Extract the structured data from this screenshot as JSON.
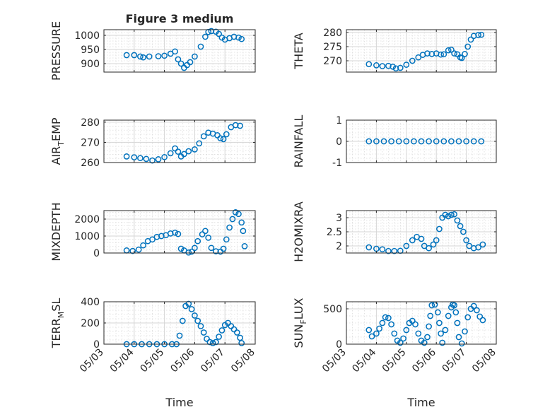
{
  "figure_title": "Figure 3 medium",
  "colors": {
    "marker": "#0072bd",
    "axis": "#262626",
    "grid": "#d6d6d6"
  },
  "chart_data": [
    {
      "id": "pressure",
      "type": "scatter",
      "title": "Figure 3 medium",
      "ylabel": "PRESSURE",
      "xlabel": "",
      "xlim": [
        0,
        5
      ],
      "ylim": [
        870,
        1020
      ],
      "yticks": [
        900,
        950,
        1000
      ],
      "ytick_labels": [
        "900",
        "950",
        "1000"
      ],
      "xticks": [
        0,
        1,
        2,
        3,
        4,
        5
      ],
      "xtick_labels": [],
      "grid": true,
      "points": [
        [
          0.75,
          930
        ],
        [
          1.0,
          930
        ],
        [
          1.2,
          925
        ],
        [
          1.3,
          922
        ],
        [
          1.5,
          925
        ],
        [
          1.8,
          926
        ],
        [
          2.0,
          928
        ],
        [
          2.2,
          935
        ],
        [
          2.35,
          943
        ],
        [
          2.45,
          915
        ],
        [
          2.55,
          900
        ],
        [
          2.65,
          885
        ],
        [
          2.75,
          895
        ],
        [
          2.85,
          905
        ],
        [
          3.0,
          925
        ],
        [
          3.2,
          960
        ],
        [
          3.35,
          995
        ],
        [
          3.45,
          1012
        ],
        [
          3.55,
          1015
        ],
        [
          3.7,
          1013
        ],
        [
          3.8,
          1005
        ],
        [
          3.9,
          992
        ],
        [
          4.0,
          985
        ],
        [
          4.15,
          990
        ],
        [
          4.3,
          995
        ],
        [
          4.45,
          992
        ],
        [
          4.55,
          987
        ]
      ]
    },
    {
      "id": "theta",
      "type": "scatter",
      "title": "",
      "ylabel": "THETA",
      "xlabel": "",
      "xlim": [
        0,
        5
      ],
      "ylim": [
        266,
        281
      ],
      "yticks": [
        270,
        275,
        280
      ],
      "ytick_labels": [
        "270",
        "275",
        "280"
      ],
      "xticks": [
        0,
        1,
        2,
        3,
        4,
        5
      ],
      "xtick_labels": [],
      "grid": true,
      "points": [
        [
          0.75,
          268.8
        ],
        [
          1.0,
          268.4
        ],
        [
          1.2,
          268.1
        ],
        [
          1.4,
          268.2
        ],
        [
          1.55,
          267.9
        ],
        [
          1.65,
          267.3
        ],
        [
          1.8,
          267.5
        ],
        [
          2.0,
          268.6
        ],
        [
          2.2,
          270.0
        ],
        [
          2.4,
          271.2
        ],
        [
          2.55,
          272.1
        ],
        [
          2.7,
          272.6
        ],
        [
          2.85,
          272.4
        ],
        [
          3.0,
          272.6
        ],
        [
          3.15,
          272.2
        ],
        [
          3.25,
          272.3
        ],
        [
          3.4,
          273.7
        ],
        [
          3.5,
          273.9
        ],
        [
          3.6,
          272.6
        ],
        [
          3.7,
          272.3
        ],
        [
          3.8,
          271.2
        ],
        [
          3.85,
          271.0
        ],
        [
          3.95,
          272.4
        ],
        [
          4.05,
          275.0
        ],
        [
          4.15,
          277.5
        ],
        [
          4.25,
          278.8
        ],
        [
          4.4,
          279.1
        ],
        [
          4.5,
          279.2
        ]
      ]
    },
    {
      "id": "air_temp",
      "type": "scatter",
      "title": "",
      "ylabel": "AIR_TEMP",
      "xlabel": "",
      "ylabel_parts": [
        "AIR",
        "T",
        "EMP"
      ],
      "xlim": [
        0,
        5
      ],
      "ylim": [
        260,
        281
      ],
      "yticks": [
        260,
        270,
        280
      ],
      "ytick_labels": [
        "260",
        "270",
        "280"
      ],
      "xticks": [
        0,
        1,
        2,
        3,
        4,
        5
      ],
      "xtick_labels": [],
      "grid": true,
      "points": [
        [
          0.75,
          263.0
        ],
        [
          1.0,
          262.6
        ],
        [
          1.2,
          262.2
        ],
        [
          1.4,
          261.8
        ],
        [
          1.6,
          261.0
        ],
        [
          1.8,
          261.6
        ],
        [
          2.0,
          262.7
        ],
        [
          2.2,
          264.6
        ],
        [
          2.35,
          267.0
        ],
        [
          2.45,
          265.4
        ],
        [
          2.55,
          263.0
        ],
        [
          2.65,
          264.2
        ],
        [
          2.8,
          265.6
        ],
        [
          3.0,
          266.5
        ],
        [
          3.15,
          269.5
        ],
        [
          3.3,
          273.0
        ],
        [
          3.45,
          274.8
        ],
        [
          3.6,
          274.3
        ],
        [
          3.75,
          273.5
        ],
        [
          3.85,
          272.0
        ],
        [
          3.95,
          271.6
        ],
        [
          4.05,
          274.0
        ],
        [
          4.2,
          277.5
        ],
        [
          4.35,
          278.5
        ],
        [
          4.5,
          278.2
        ]
      ]
    },
    {
      "id": "rainfall",
      "type": "scatter",
      "title": "",
      "ylabel": "RAINFALL",
      "xlabel": "",
      "xlim": [
        0,
        5
      ],
      "ylim": [
        -1,
        1
      ],
      "yticks": [
        -1,
        0,
        1
      ],
      "ytick_labels": [
        "-1",
        "0",
        "1"
      ],
      "xticks": [
        0,
        1,
        2,
        3,
        4,
        5
      ],
      "xtick_labels": [],
      "grid": true,
      "points": [
        [
          0.75,
          0
        ],
        [
          1.0,
          0
        ],
        [
          1.25,
          0
        ],
        [
          1.5,
          0
        ],
        [
          1.75,
          0
        ],
        [
          2.0,
          0
        ],
        [
          2.25,
          0
        ],
        [
          2.5,
          0
        ],
        [
          2.75,
          0
        ],
        [
          3.0,
          0
        ],
        [
          3.25,
          0
        ],
        [
          3.5,
          0
        ],
        [
          3.75,
          0
        ],
        [
          4.0,
          0
        ],
        [
          4.25,
          0
        ],
        [
          4.5,
          0
        ]
      ]
    },
    {
      "id": "mixdepth",
      "type": "scatter",
      "title": "",
      "ylabel": "MIXDEPTH",
      "xlabel": "",
      "xlim": [
        0,
        5
      ],
      "ylim": [
        0,
        2500
      ],
      "yticks": [
        0,
        1000,
        2000
      ],
      "ytick_labels": [
        "0",
        "1000",
        "2000"
      ],
      "xticks": [
        0,
        1,
        2,
        3,
        4,
        5
      ],
      "xtick_labels": [],
      "grid": true,
      "points": [
        [
          0.75,
          150
        ],
        [
          0.95,
          120
        ],
        [
          1.15,
          200
        ],
        [
          1.3,
          450
        ],
        [
          1.45,
          700
        ],
        [
          1.6,
          800
        ],
        [
          1.75,
          950
        ],
        [
          1.9,
          1000
        ],
        [
          2.05,
          1050
        ],
        [
          2.2,
          1150
        ],
        [
          2.35,
          1200
        ],
        [
          2.45,
          1120
        ],
        [
          2.55,
          250
        ],
        [
          2.65,
          150
        ],
        [
          2.8,
          30
        ],
        [
          2.9,
          80
        ],
        [
          3.0,
          300
        ],
        [
          3.1,
          700
        ],
        [
          3.25,
          1100
        ],
        [
          3.35,
          1300
        ],
        [
          3.45,
          900
        ],
        [
          3.55,
          300
        ],
        [
          3.7,
          100
        ],
        [
          3.85,
          80
        ],
        [
          3.95,
          250
        ],
        [
          4.05,
          800
        ],
        [
          4.15,
          1500
        ],
        [
          4.25,
          2000
        ],
        [
          4.35,
          2400
        ],
        [
          4.45,
          2300
        ],
        [
          4.55,
          1800
        ],
        [
          4.6,
          1300
        ],
        [
          4.65,
          400
        ]
      ]
    },
    {
      "id": "h2omixra",
      "type": "scatter",
      "title": "",
      "ylabel": "H2OMIXRA",
      "xlabel": "",
      "xlim": [
        0,
        5
      ],
      "ylim": [
        1.75,
        3.25
      ],
      "yticks": [
        2,
        2.5,
        3
      ],
      "ytick_labels": [
        "2",
        "2.5",
        "3"
      ],
      "xticks": [
        0,
        1,
        2,
        3,
        4,
        5
      ],
      "xtick_labels": [],
      "grid": true,
      "points": [
        [
          0.75,
          1.95
        ],
        [
          1.0,
          1.9
        ],
        [
          1.2,
          1.88
        ],
        [
          1.4,
          1.82
        ],
        [
          1.6,
          1.82
        ],
        [
          1.8,
          1.83
        ],
        [
          2.0,
          2.0
        ],
        [
          2.2,
          2.2
        ],
        [
          2.35,
          2.32
        ],
        [
          2.5,
          2.25
        ],
        [
          2.6,
          2.0
        ],
        [
          2.75,
          1.92
        ],
        [
          2.9,
          2.05
        ],
        [
          3.0,
          2.2
        ],
        [
          3.1,
          2.6
        ],
        [
          3.2,
          3.0
        ],
        [
          3.3,
          3.1
        ],
        [
          3.4,
          3.05
        ],
        [
          3.5,
          3.1
        ],
        [
          3.6,
          3.12
        ],
        [
          3.7,
          2.9
        ],
        [
          3.8,
          2.7
        ],
        [
          3.9,
          2.5
        ],
        [
          4.0,
          2.2
        ],
        [
          4.1,
          2.0
        ],
        [
          4.25,
          1.92
        ],
        [
          4.4,
          1.95
        ],
        [
          4.55,
          2.05
        ]
      ]
    },
    {
      "id": "terr_msl",
      "type": "scatter",
      "title": "",
      "ylabel": "TERR_MSL",
      "xlabel": "Time",
      "ylabel_parts": [
        "TERR",
        "M",
        "SL"
      ],
      "xlim": [
        0,
        5
      ],
      "ylim": [
        0,
        400
      ],
      "yticks": [
        0,
        200,
        400
      ],
      "ytick_labels": [
        "0",
        "200",
        "400"
      ],
      "xticks": [
        0,
        1,
        2,
        3,
        4,
        5
      ],
      "xtick_labels": [
        "05/03",
        "05/04",
        "05/05",
        "05/06",
        "05/07",
        "05/08"
      ],
      "grid": true,
      "points": [
        [
          0.75,
          0
        ],
        [
          1.0,
          0
        ],
        [
          1.25,
          0
        ],
        [
          1.5,
          0
        ],
        [
          1.75,
          0
        ],
        [
          2.0,
          0
        ],
        [
          2.25,
          0
        ],
        [
          2.4,
          0
        ],
        [
          2.5,
          80
        ],
        [
          2.6,
          220
        ],
        [
          2.7,
          360
        ],
        [
          2.8,
          380
        ],
        [
          2.9,
          330
        ],
        [
          3.0,
          270
        ],
        [
          3.1,
          220
        ],
        [
          3.2,
          170
        ],
        [
          3.3,
          110
        ],
        [
          3.4,
          50
        ],
        [
          3.5,
          20
        ],
        [
          3.6,
          10
        ],
        [
          3.7,
          20
        ],
        [
          3.8,
          70
        ],
        [
          3.9,
          130
        ],
        [
          4.0,
          180
        ],
        [
          4.1,
          200
        ],
        [
          4.2,
          170
        ],
        [
          4.3,
          140
        ],
        [
          4.4,
          110
        ],
        [
          4.5,
          60
        ],
        [
          4.55,
          10
        ]
      ]
    },
    {
      "id": "sun_flux",
      "type": "scatter",
      "title": "",
      "ylabel": "SUN_FLUX",
      "xlabel": "Time",
      "ylabel_parts": [
        "SUN",
        "F",
        "LUX"
      ],
      "xlim": [
        0,
        5
      ],
      "ylim": [
        0,
        600
      ],
      "yticks": [
        0,
        500
      ],
      "ytick_labels": [
        "0",
        "500"
      ],
      "xticks": [
        0,
        1,
        2,
        3,
        4,
        5
      ],
      "xtick_labels": [
        "05/03",
        "05/04",
        "05/05",
        "05/06",
        "05/07",
        "05/08"
      ],
      "grid": true,
      "points": [
        [
          0.75,
          200
        ],
        [
          0.85,
          110
        ],
        [
          1.0,
          150
        ],
        [
          1.1,
          220
        ],
        [
          1.2,
          300
        ],
        [
          1.3,
          380
        ],
        [
          1.4,
          370
        ],
        [
          1.5,
          280
        ],
        [
          1.6,
          150
        ],
        [
          1.7,
          50
        ],
        [
          1.8,
          20
        ],
        [
          1.9,
          80
        ],
        [
          2.0,
          200
        ],
        [
          2.1,
          300
        ],
        [
          2.2,
          330
        ],
        [
          2.3,
          280
        ],
        [
          2.4,
          150
        ],
        [
          2.5,
          50
        ],
        [
          2.6,
          20
        ],
        [
          2.7,
          100
        ],
        [
          2.75,
          250
        ],
        [
          2.8,
          400
        ],
        [
          2.85,
          550
        ],
        [
          2.95,
          560
        ],
        [
          3.05,
          450
        ],
        [
          3.1,
          300
        ],
        [
          3.15,
          150
        ],
        [
          3.2,
          20
        ],
        [
          3.3,
          200
        ],
        [
          3.4,
          400
        ],
        [
          3.5,
          520
        ],
        [
          3.55,
          560
        ],
        [
          3.6,
          550
        ],
        [
          3.65,
          450
        ],
        [
          3.7,
          300
        ],
        [
          3.75,
          100
        ],
        [
          3.85,
          10
        ],
        [
          3.95,
          180
        ],
        [
          4.05,
          380
        ],
        [
          4.15,
          500
        ],
        [
          4.25,
          540
        ],
        [
          4.35,
          480
        ],
        [
          4.45,
          390
        ],
        [
          4.55,
          340
        ]
      ]
    }
  ]
}
